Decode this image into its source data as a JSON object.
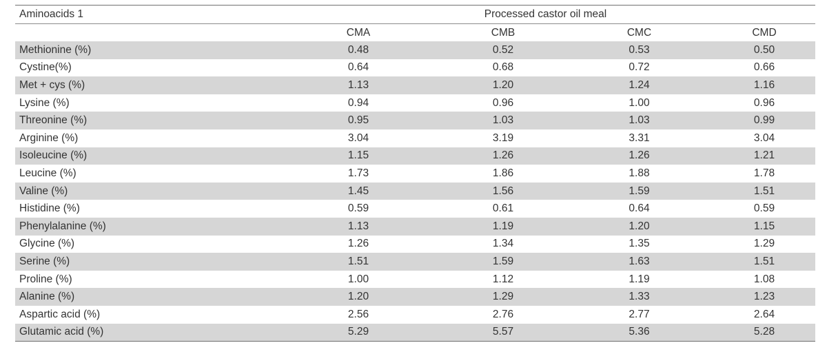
{
  "table": {
    "header": {
      "row_label": "Aminoacids 1",
      "group_label": "Processed castor oil meal",
      "columns": [
        "CMA",
        "CMB",
        "CMC",
        "CMD"
      ]
    },
    "rows": [
      {
        "label": "Methionine (%)",
        "values": [
          "0.48",
          "0.52",
          "0.53",
          "0.50"
        ]
      },
      {
        "label": "Cystine(%)",
        "values": [
          "0.64",
          "0.68",
          "0.72",
          "0.66"
        ]
      },
      {
        "label": "Met + cys (%)",
        "values": [
          "1.13",
          "1.20",
          "1.24",
          "1.16"
        ]
      },
      {
        "label": "Lysine (%)",
        "values": [
          "0.94",
          "0.96",
          "1.00",
          "0.96"
        ]
      },
      {
        "label": "Threonine (%)",
        "values": [
          "0.95",
          "1.03",
          "1.03",
          "0.99"
        ]
      },
      {
        "label": "Arginine (%)",
        "values": [
          "3.04",
          "3.19",
          "3.31",
          "3.04"
        ]
      },
      {
        "label": "Isoleucine (%)",
        "values": [
          "1.15",
          "1.26",
          "1.26",
          "1.21"
        ]
      },
      {
        "label": "Leucine (%)",
        "values": [
          "1.73",
          "1.86",
          "1.88",
          "1.78"
        ]
      },
      {
        "label": "Valine (%)",
        "values": [
          "1.45",
          "1.56",
          "1.59",
          "1.51"
        ]
      },
      {
        "label": "Histidine (%)",
        "values": [
          "0.59",
          "0.61",
          "0.64",
          "0.59"
        ]
      },
      {
        "label": "Phenylalanine (%)",
        "values": [
          "1.13",
          "1.19",
          "1.20",
          "1.15"
        ]
      },
      {
        "label": "Glycine (%)",
        "values": [
          "1.26",
          "1.34",
          "1.35",
          "1.29"
        ]
      },
      {
        "label": "Serine (%)",
        "values": [
          "1.51",
          "1.59",
          "1.63",
          "1.51"
        ]
      },
      {
        "label": "Proline (%)",
        "values": [
          "1.00",
          "1.12",
          "1.19",
          "1.08"
        ]
      },
      {
        "label": "Alanine (%)",
        "values": [
          "1.20",
          "1.29",
          "1.33",
          "1.23"
        ]
      },
      {
        "label": "Aspartic acid (%)",
        "values": [
          "2.56",
          "2.76",
          "2.77",
          "2.64"
        ]
      },
      {
        "label": "Glutamic acid (%)",
        "values": [
          "5.29",
          "5.57",
          "5.36",
          "5.28"
        ]
      }
    ],
    "colors": {
      "shade": "#d6d6d6",
      "rule": "#6f6f6f",
      "text": "#333333"
    }
  }
}
